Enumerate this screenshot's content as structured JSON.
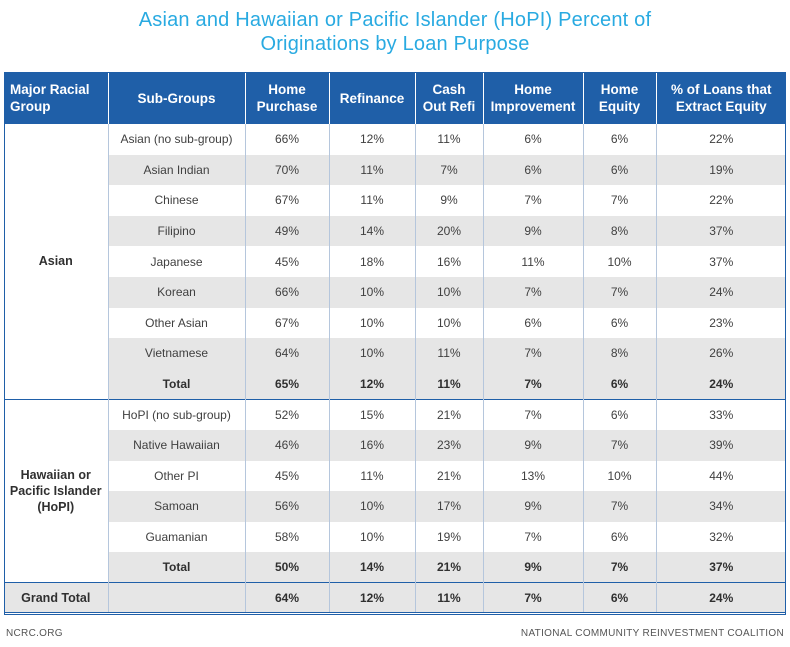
{
  "title": {
    "line1": "Asian and Hawaiian or Pacific Islander (HoPI) Percent of",
    "line2": "Originations by Loan Purpose"
  },
  "columns": [
    "Major Racial Group",
    "Sub-Groups",
    "Home Purchase",
    "Refinance",
    "Cash Out Refi",
    "Home Improvement",
    "Home Equity",
    "% of Loans that Extract Equity"
  ],
  "groups": [
    {
      "name": "Asian",
      "rows": [
        {
          "sub": "Asian (no sub-group)",
          "vals": [
            "66%",
            "12%",
            "11%",
            "6%",
            "6%",
            "22%"
          ]
        },
        {
          "sub": "Asian Indian",
          "vals": [
            "70%",
            "11%",
            "7%",
            "6%",
            "6%",
            "19%"
          ]
        },
        {
          "sub": "Chinese",
          "vals": [
            "67%",
            "11%",
            "9%",
            "7%",
            "7%",
            "22%"
          ]
        },
        {
          "sub": "Filipino",
          "vals": [
            "49%",
            "14%",
            "20%",
            "9%",
            "8%",
            "37%"
          ]
        },
        {
          "sub": "Japanese",
          "vals": [
            "45%",
            "18%",
            "16%",
            "11%",
            "10%",
            "37%"
          ]
        },
        {
          "sub": "Korean",
          "vals": [
            "66%",
            "10%",
            "10%",
            "7%",
            "7%",
            "24%"
          ]
        },
        {
          "sub": "Other Asian",
          "vals": [
            "67%",
            "10%",
            "10%",
            "6%",
            "6%",
            "23%"
          ]
        },
        {
          "sub": "Vietnamese",
          "vals": [
            "64%",
            "10%",
            "11%",
            "7%",
            "8%",
            "26%"
          ]
        }
      ],
      "total": {
        "sub": "Total",
        "vals": [
          "65%",
          "12%",
          "11%",
          "7%",
          "6%",
          "24%"
        ]
      }
    },
    {
      "name": "Hawaiian or Pacific Islander (HoPI)",
      "rows": [
        {
          "sub": "HoPI (no sub-group)",
          "vals": [
            "52%",
            "15%",
            "21%",
            "7%",
            "6%",
            "33%"
          ]
        },
        {
          "sub": "Native Hawaiian",
          "vals": [
            "46%",
            "16%",
            "23%",
            "9%",
            "7%",
            "39%"
          ]
        },
        {
          "sub": "Other PI",
          "vals": [
            "45%",
            "11%",
            "21%",
            "13%",
            "10%",
            "44%"
          ]
        },
        {
          "sub": "Samoan",
          "vals": [
            "56%",
            "10%",
            "17%",
            "9%",
            "7%",
            "34%"
          ]
        },
        {
          "sub": "Guamanian",
          "vals": [
            "58%",
            "10%",
            "19%",
            "7%",
            "6%",
            "32%"
          ]
        }
      ],
      "total": {
        "sub": "Total",
        "vals": [
          "50%",
          "14%",
          "21%",
          "9%",
          "7%",
          "37%"
        ]
      }
    }
  ],
  "grand_total": {
    "label": "Grand Total",
    "vals": [
      "64%",
      "12%",
      "11%",
      "7%",
      "6%",
      "24%"
    ]
  },
  "footer": {
    "left": "NCRC.ORG",
    "right": "NATIONAL COMMUNITY REINVESTMENT COALITION"
  },
  "colors": {
    "title": "#29aae1",
    "header": "#1f5fa8",
    "shade": "#e6e6e6"
  }
}
